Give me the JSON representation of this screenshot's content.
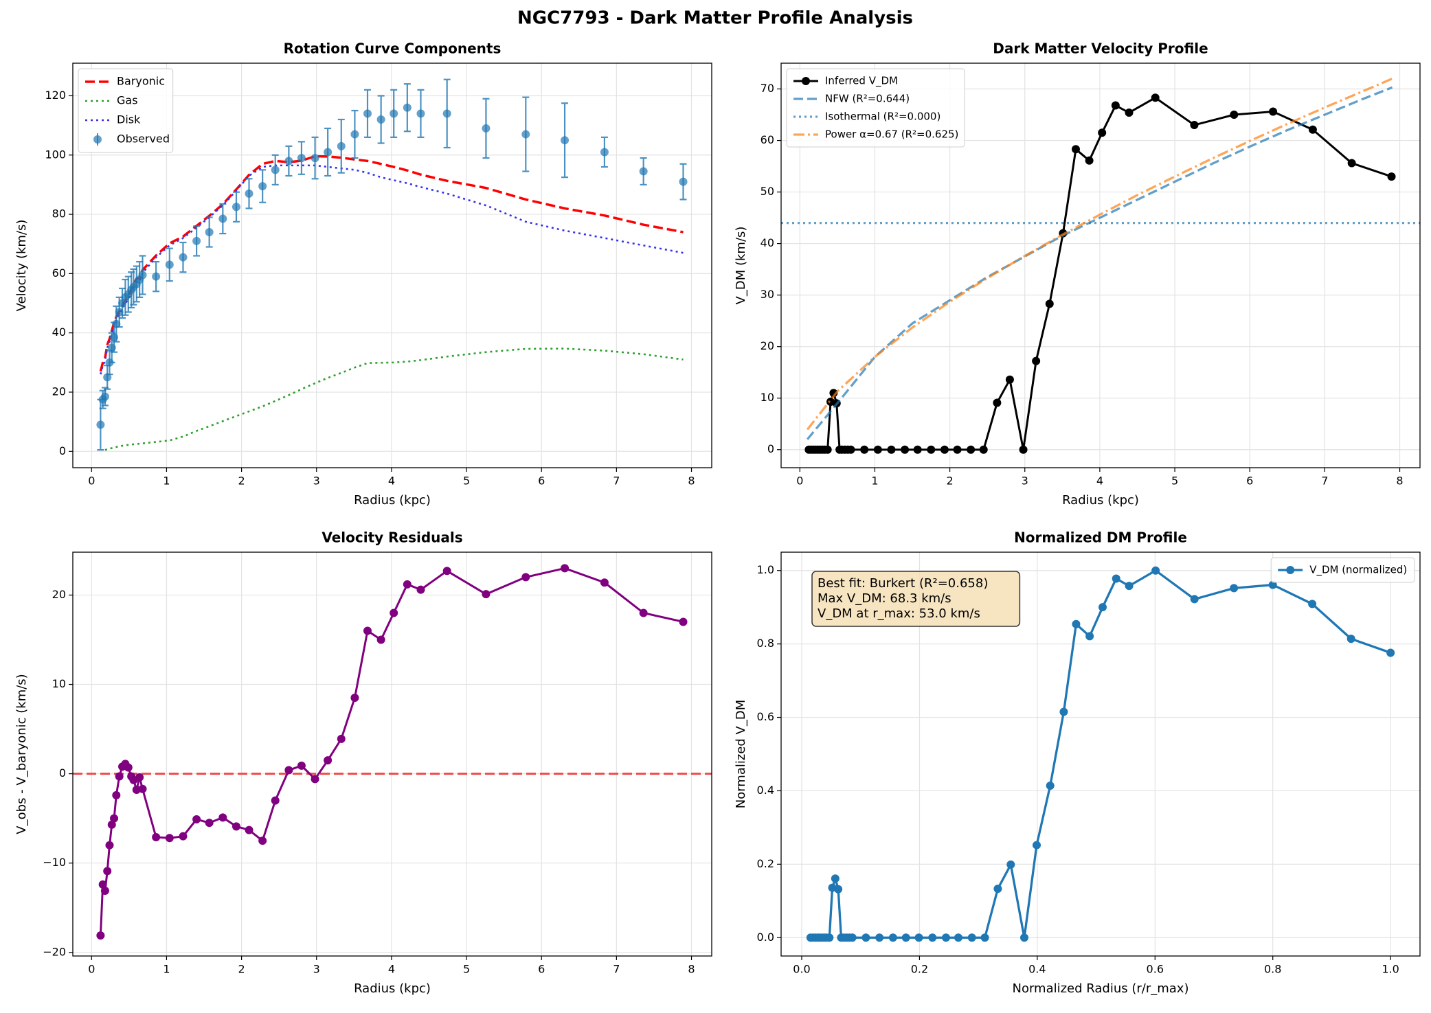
{
  "title": "NGC7793 - Dark Matter Profile Analysis",
  "chart_data": [
    {
      "type": "line",
      "title": "Rotation Curve Components",
      "xlabel": "Radius (kpc)",
      "ylabel": "Velocity (km/s)",
      "xlim": [
        -0.25,
        8.27
      ],
      "ylim": [
        -5.5,
        131
      ],
      "xticks": [
        0,
        1,
        2,
        3,
        4,
        5,
        6,
        7,
        8
      ],
      "yticks": [
        0,
        20,
        40,
        60,
        80,
        100,
        120
      ],
      "grid": true,
      "legend": "upper left",
      "x": [
        0.12,
        0.15,
        0.18,
        0.21,
        0.24,
        0.27,
        0.3,
        0.33,
        0.37,
        0.41,
        0.45,
        0.49,
        0.53,
        0.56,
        0.6,
        0.64,
        0.68,
        0.86,
        1.04,
        1.22,
        1.4,
        1.57,
        1.75,
        1.93,
        2.1,
        2.28,
        2.45,
        2.63,
        2.8,
        2.98,
        3.15,
        3.33,
        3.51,
        3.68,
        3.86,
        4.03,
        4.21,
        4.39,
        4.74,
        5.26,
        5.79,
        6.31,
        6.84,
        7.36,
        7.89
      ],
      "series": [
        {
          "name": "Baryonic",
          "color": "#ff0000",
          "linestyle": "dashed",
          "width": 3.5,
          "values": [
            27,
            30,
            31.5,
            36,
            38,
            40.7,
            43.5,
            45.4,
            47.3,
            49.2,
            50.9,
            52.3,
            54.8,
            56.2,
            58.3,
            58.4,
            61.2,
            66.1,
            70.2,
            72.5,
            76.1,
            79.5,
            83.4,
            88.4,
            93.3,
            97,
            98,
            97.6,
            98.1,
            99.6,
            99.5,
            99.1,
            98.5,
            98,
            97,
            96,
            94.8,
            93.4,
            91.3,
            88.9,
            85,
            82,
            79.6,
            76.5,
            74
          ]
        },
        {
          "name": "Gas",
          "color": "#2ca02c",
          "linestyle": "dotted",
          "width": 2.6,
          "values": [
            null,
            null,
            0.5,
            0.7,
            0.9,
            1.1,
            1.3,
            1.5,
            1.7,
            1.9,
            2.1,
            2.2,
            2.3,
            2.4,
            2.5,
            2.6,
            2.7,
            3.2,
            3.7,
            5,
            6.9,
            8.5,
            10.2,
            11.9,
            13.5,
            15.2,
            17,
            19,
            21,
            23,
            24.8,
            26.5,
            28.3,
            29.8,
            29.9,
            30,
            30.3,
            30.8,
            32,
            33.5,
            34.6,
            34.7,
            34,
            32.8,
            31
          ]
        },
        {
          "name": "Disk",
          "color": "#3333ee",
          "linestyle": "dotted",
          "width": 2.6,
          "values": [
            26,
            29,
            30.5,
            35,
            37,
            39.7,
            42.5,
            44.4,
            46.3,
            48.2,
            49.9,
            51.3,
            53.8,
            55.2,
            57.3,
            57.4,
            60.2,
            65.5,
            69.5,
            72,
            75.5,
            79,
            83,
            88,
            93,
            96,
            96.5,
            96.5,
            96.5,
            96.5,
            96,
            95.5,
            95,
            94,
            92.5,
            91.5,
            90.5,
            89.2,
            87,
            83,
            77.5,
            74.5,
            72,
            69.5,
            67
          ]
        },
        {
          "name": "Observed",
          "color": "#1f77b4",
          "alpha": 0.7,
          "linestyle": "none",
          "marker": "o",
          "values": [
            9,
            17.5,
            18.5,
            25,
            30,
            35,
            38.5,
            43,
            47,
            50,
            52,
            53,
            54.5,
            55.5,
            56.5,
            58,
            59.5,
            59,
            63,
            65.5,
            71,
            74,
            78.5,
            82.5,
            87,
            89.5,
            95,
            98,
            99,
            99,
            101,
            103,
            107,
            114,
            112,
            114,
            116,
            114,
            114,
            109,
            107,
            105,
            101,
            94.5,
            91
          ],
          "errors": [
            8.5,
            3,
            3,
            4,
            4,
            5,
            5,
            6,
            5,
            5,
            6,
            6,
            6,
            6,
            6,
            6,
            6.5,
            5,
            5.5,
            5,
            5,
            5,
            5,
            5,
            5,
            5.5,
            5,
            5,
            5.5,
            7,
            8,
            9,
            8,
            8,
            8,
            8,
            8,
            8,
            11.5,
            10,
            12.5,
            12.5,
            5,
            4.5,
            6
          ]
        }
      ]
    },
    {
      "type": "line",
      "title": "Dark Matter Velocity Profile",
      "xlabel": "Radius (kpc)",
      "ylabel": "V_DM (km/s)",
      "xlim": [
        -0.25,
        8.27
      ],
      "ylim": [
        -3.5,
        75
      ],
      "xticks": [
        0,
        1,
        2,
        3,
        4,
        5,
        6,
        7,
        8
      ],
      "yticks": [
        0,
        10,
        20,
        30,
        40,
        50,
        60,
        70
      ],
      "grid": true,
      "legend": "upper left",
      "x": [
        0.12,
        0.15,
        0.18,
        0.21,
        0.24,
        0.27,
        0.3,
        0.33,
        0.37,
        0.41,
        0.45,
        0.49,
        0.53,
        0.56,
        0.6,
        0.64,
        0.68,
        0.86,
        1.04,
        1.22,
        1.4,
        1.57,
        1.75,
        1.93,
        2.1,
        2.28,
        2.45,
        2.63,
        2.8,
        2.98,
        3.15,
        3.33,
        3.51,
        3.68,
        3.86,
        4.03,
        4.21,
        4.39,
        4.74,
        5.26,
        5.79,
        6.31,
        6.84,
        7.36,
        7.89
      ],
      "series": [
        {
          "name": "Inferred V_DM",
          "color": "#000000",
          "linestyle": "solid",
          "marker": "o",
          "width": 3,
          "values": [
            0,
            0,
            0,
            0,
            0,
            0,
            0,
            0,
            0,
            9.3,
            11,
            9,
            0,
            0,
            0,
            0,
            0,
            0,
            0,
            0,
            0,
            0,
            0,
            0,
            0,
            0,
            0,
            9.1,
            13.6,
            0,
            17.2,
            28.3,
            42,
            58.3,
            56.1,
            61.5,
            66.8,
            65.4,
            68.3,
            63,
            65,
            65.6,
            62.1,
            55.6,
            53
          ]
        },
        {
          "name": "NFW (R²=0.644)",
          "color": "#1f77b4",
          "alpha": 0.7,
          "linestyle": "dashed",
          "width": 3.3,
          "x": [
            0.1,
            0.5,
            1,
            1.5,
            2,
            2.5,
            3,
            3.5,
            4,
            4.5,
            5,
            5.5,
            6,
            6.5,
            7,
            7.5,
            7.9
          ],
          "values": [
            2,
            9,
            18,
            24.5,
            29,
            33.5,
            37.5,
            41.5,
            45,
            48.5,
            52,
            55.5,
            58.8,
            62,
            65,
            68,
            70.3
          ]
        },
        {
          "name": "Isothermal (R²=0.000)",
          "color": "#1f77b4",
          "alpha": 0.7,
          "linestyle": "dotted",
          "width": 3.3,
          "x": [
            -0.25,
            8.27
          ],
          "values": [
            44,
            44
          ]
        },
        {
          "name": "Power α=0.67 (R²=0.625)",
          "color": "#ff7f0e",
          "alpha": 0.7,
          "linestyle": "dashdot",
          "width": 3.3,
          "x": [
            0.1,
            0.5,
            1,
            1.5,
            2,
            2.5,
            3,
            3.5,
            4,
            4.5,
            5,
            5.5,
            6,
            6.5,
            7,
            7.5,
            7.9
          ],
          "values": [
            3.9,
            11.3,
            18,
            23.7,
            28.7,
            33.3,
            37.6,
            41.7,
            45.6,
            49.4,
            53,
            56.5,
            59.9,
            63.2,
            66.4,
            69.5,
            72
          ]
        }
      ]
    },
    {
      "type": "line",
      "title": "Velocity Residuals",
      "xlabel": "Radius (kpc)",
      "ylabel": "V_obs - V_baryonic (km/s)",
      "xlim": [
        -0.25,
        8.27
      ],
      "ylim": [
        -20.4,
        24.8
      ],
      "xticks": [
        0,
        1,
        2,
        3,
        4,
        5,
        6,
        7,
        8
      ],
      "yticks": [
        {
          "value": -20,
          "label": "−20"
        },
        {
          "value": -10,
          "label": "−10"
        },
        0,
        10,
        20
      ],
      "grid": true,
      "reference_line": {
        "value": 0,
        "color": "#ee2222"
      },
      "x": [
        0.12,
        0.15,
        0.18,
        0.21,
        0.24,
        0.27,
        0.3,
        0.33,
        0.37,
        0.41,
        0.45,
        0.49,
        0.53,
        0.56,
        0.6,
        0.64,
        0.68,
        0.86,
        1.04,
        1.22,
        1.4,
        1.57,
        1.75,
        1.93,
        2.1,
        2.28,
        2.45,
        2.63,
        2.8,
        2.98,
        3.15,
        3.33,
        3.51,
        3.68,
        3.86,
        4.03,
        4.21,
        4.39,
        4.74,
        5.26,
        5.79,
        6.31,
        6.84,
        7.36,
        7.89
      ],
      "series": [
        {
          "color": "#800080",
          "linestyle": "solid",
          "marker": "o",
          "width": 3,
          "values": [
            -18.1,
            -12.4,
            -13.1,
            -10.9,
            -8,
            -5.7,
            -5,
            -2.4,
            -0.3,
            0.8,
            1.1,
            0.7,
            -0.3,
            -0.7,
            -1.8,
            -0.4,
            -1.7,
            -7.1,
            -7.2,
            -7,
            -5.1,
            -5.5,
            -4.9,
            -5.9,
            -6.3,
            -7.5,
            -3,
            0.4,
            0.9,
            -0.6,
            1.5,
            3.9,
            8.5,
            16,
            15,
            18,
            21.2,
            20.6,
            22.7,
            20.1,
            22,
            23,
            21.4,
            18,
            17
          ]
        }
      ]
    },
    {
      "type": "line",
      "title": "Normalized DM Profile",
      "xlabel": "Normalized Radius (r/r_max)",
      "ylabel": "Normalized V_DM",
      "xlim": [
        -0.035,
        1.05
      ],
      "ylim": [
        -0.05,
        1.05
      ],
      "xticks": [
        {
          "value": 0,
          "label": "0.0"
        },
        0.2,
        0.4,
        0.6,
        0.8,
        {
          "value": 1,
          "label": "1.0"
        }
      ],
      "yticks": [
        {
          "value": 0,
          "label": "0.0"
        },
        0.2,
        0.4,
        0.6,
        0.8,
        {
          "value": 1,
          "label": "1.0"
        }
      ],
      "grid": true,
      "legend": "upper right",
      "annotation": [
        "Best fit: Burkert (R²=0.658)",
        "Max V_DM: 68.3 km/s",
        "V_DM at r_max: 53.0 km/s"
      ],
      "x": [
        0.015,
        0.019,
        0.023,
        0.027,
        0.03,
        0.034,
        0.038,
        0.042,
        0.047,
        0.052,
        0.057,
        0.062,
        0.067,
        0.071,
        0.076,
        0.081,
        0.086,
        0.109,
        0.132,
        0.155,
        0.177,
        0.199,
        0.222,
        0.245,
        0.266,
        0.289,
        0.311,
        0.333,
        0.355,
        0.378,
        0.399,
        0.422,
        0.445,
        0.466,
        0.489,
        0.511,
        0.534,
        0.556,
        0.601,
        0.667,
        0.734,
        0.8,
        0.867,
        0.933,
        1.0
      ],
      "series": [
        {
          "name": "V_DM (normalized)",
          "color": "#1f77b4",
          "linestyle": "solid",
          "marker": "o",
          "width": 3.3,
          "values": [
            0,
            0,
            0,
            0,
            0,
            0,
            0,
            0,
            0,
            0.136,
            0.161,
            0.132,
            0,
            0,
            0,
            0,
            0,
            0,
            0,
            0,
            0,
            0,
            0,
            0,
            0,
            0,
            0,
            0.133,
            0.199,
            0,
            0.252,
            0.414,
            0.615,
            0.854,
            0.821,
            0.9,
            0.978,
            0.958,
            1.0,
            0.922,
            0.952,
            0.961,
            0.909,
            0.814,
            0.776
          ]
        }
      ]
    }
  ]
}
